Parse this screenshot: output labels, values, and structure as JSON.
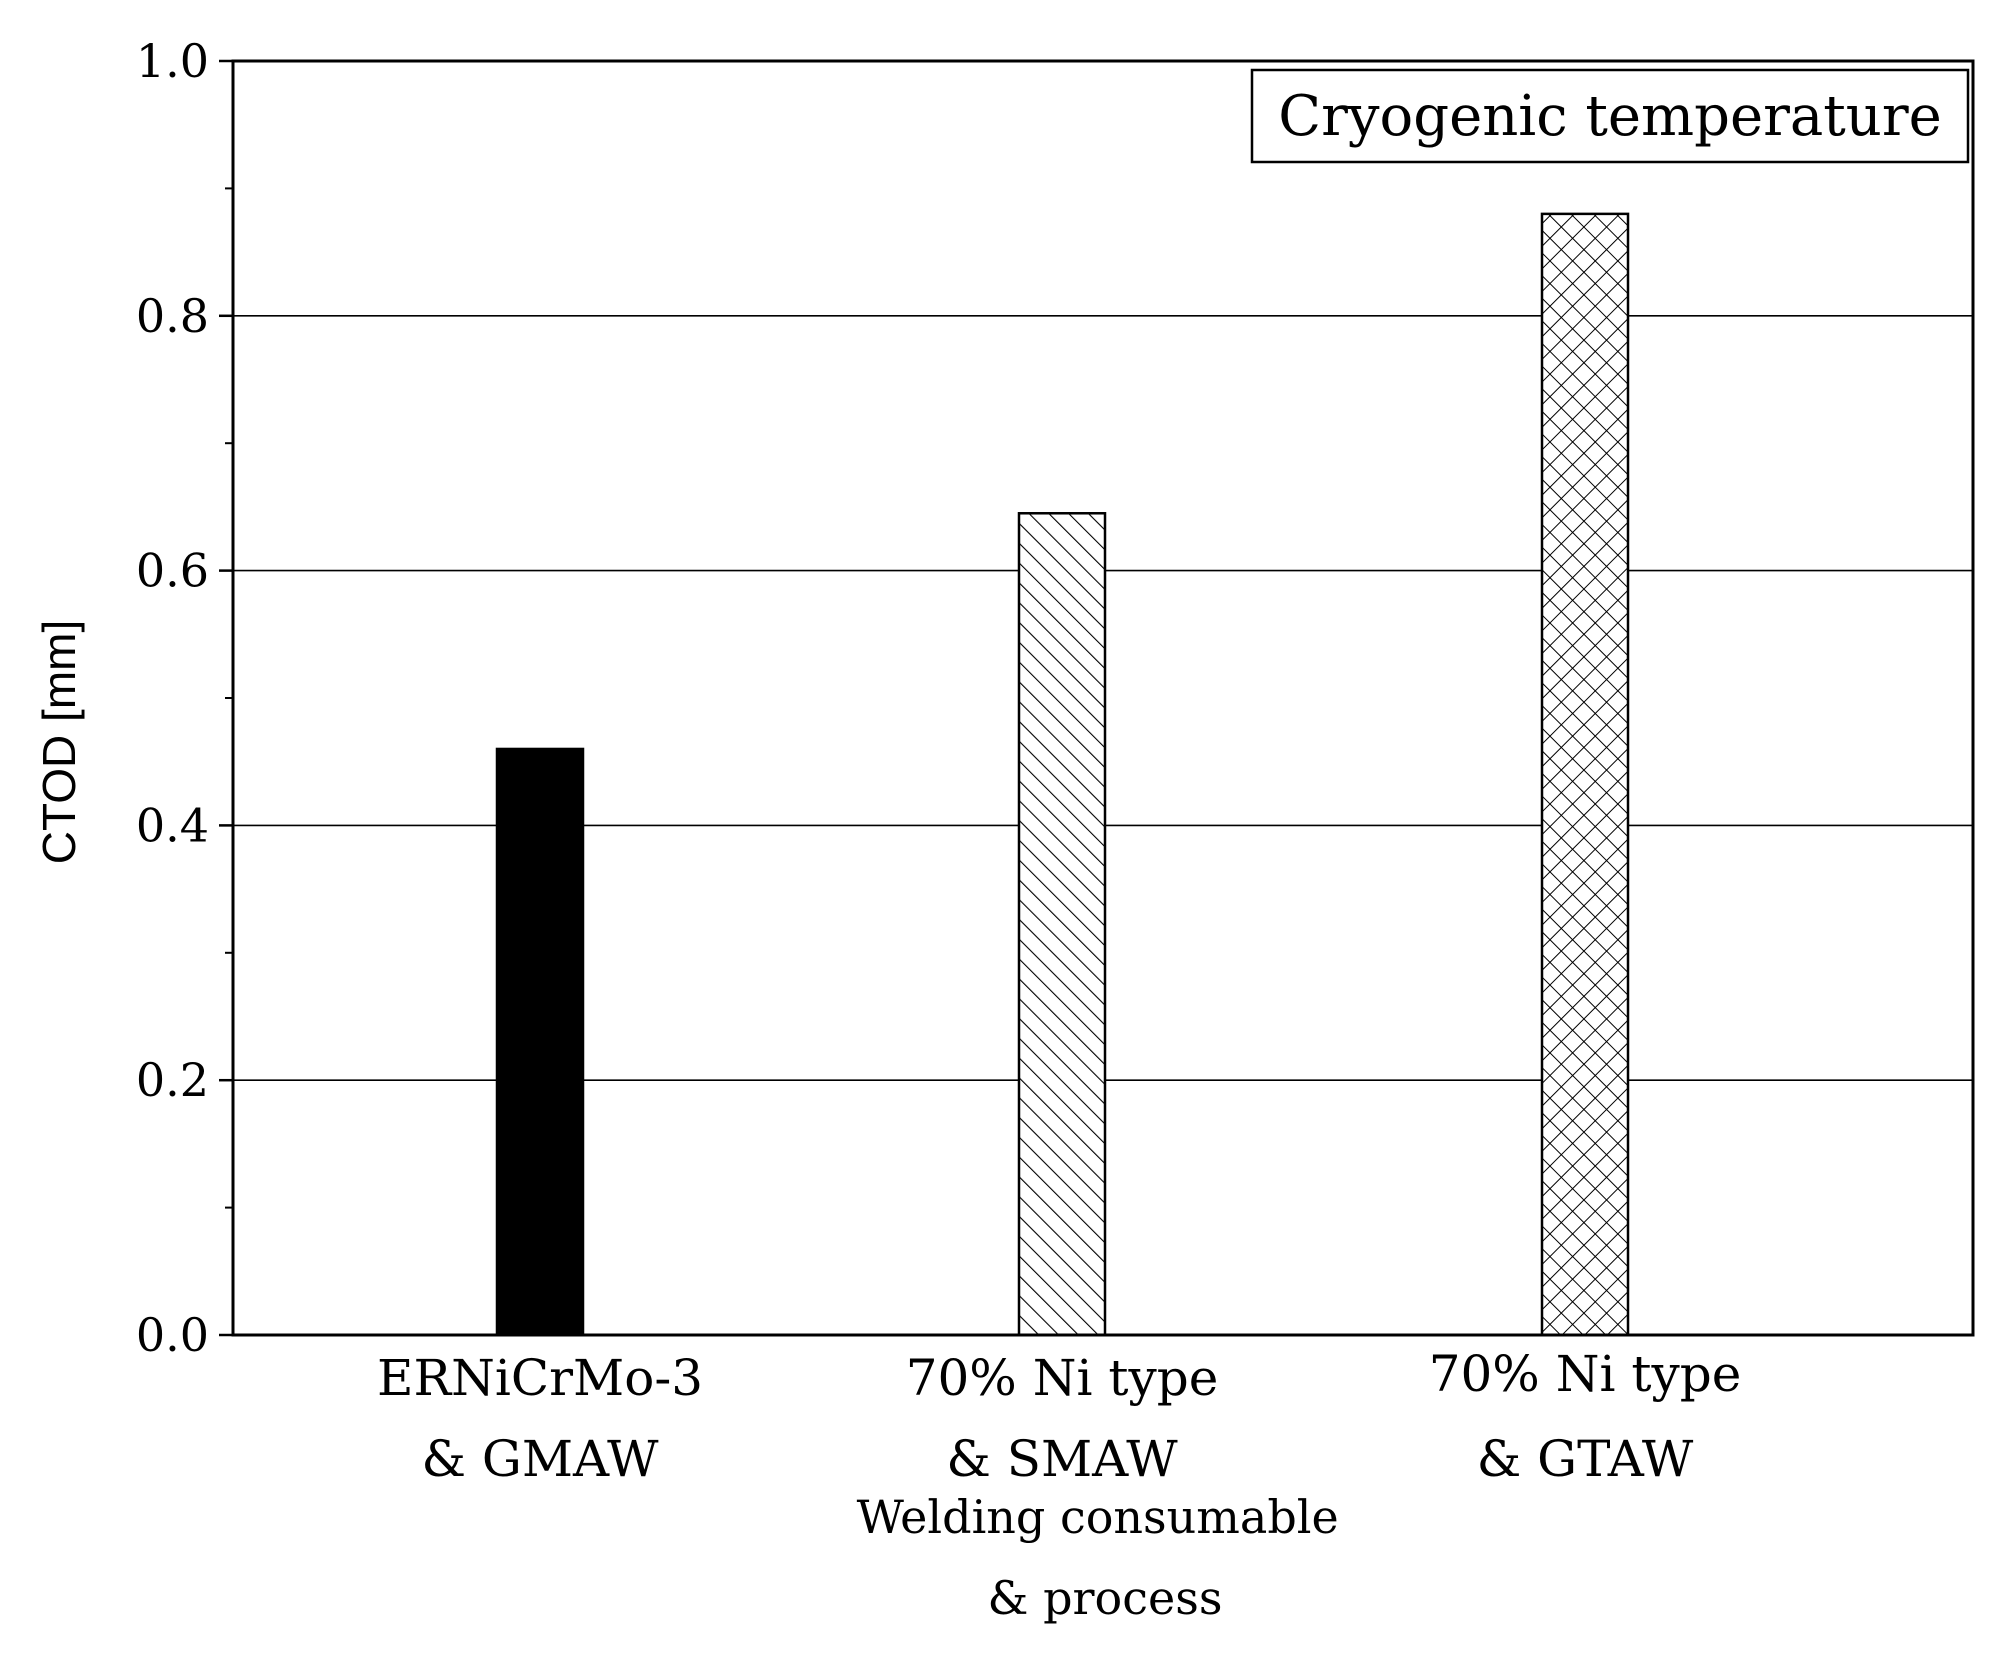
{
  "chart_data": {
    "type": "bar",
    "categories": [
      [
        "ERNiCrMo-3",
        "& GMAW"
      ],
      [
        "70% Ni type",
        "& SMAW"
      ],
      [
        "70% Ni type",
        "& GTAW"
      ]
    ],
    "values": [
      0.46,
      0.645,
      0.88
    ],
    "fills": [
      "solid",
      "diagonal-hatch",
      "cross-hatch"
    ],
    "xlabel": [
      "Welding consumable",
      "& process"
    ],
    "ylabel": "CTOD [mm]",
    "ylim": [
      0.0,
      1.0
    ],
    "yticks": [
      "0.0",
      "0.2",
      "0.4",
      "0.6",
      "0.8",
      "1.0"
    ],
    "grid": true,
    "annotation": "Cryogenic temperature",
    "colors": {
      "bar_fill": "#000000",
      "axis": "#000000",
      "grid": "#000000",
      "background": "#ffffff"
    }
  }
}
